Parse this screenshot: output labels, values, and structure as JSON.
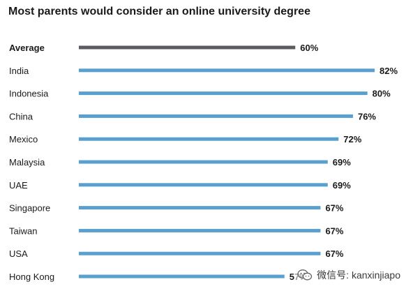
{
  "chart_data": {
    "type": "bar",
    "orientation": "horizontal",
    "title": "Most parents would consider an online university degree",
    "categories": [
      "Average",
      "India",
      "Indonesia",
      "China",
      "Mexico",
      "Malaysia",
      "UAE",
      "Singapore",
      "Taiwan",
      "USA",
      "Hong Kong"
    ],
    "values": [
      60,
      82,
      80,
      76,
      72,
      69,
      69,
      67,
      67,
      67,
      57
    ],
    "value_labels": [
      "60%",
      "82%",
      "80%",
      "76%",
      "72%",
      "69%",
      "69%",
      "67%",
      "67%",
      "67%",
      "57%"
    ],
    "highlight_category": "Average",
    "xlim": [
      0,
      82
    ],
    "grid": false,
    "legend": "none",
    "colors": {
      "bar": "#5aa0cf",
      "highlight_bar": "#5a5c60",
      "text": "#1a1a1a"
    }
  },
  "watermark": {
    "icon": "wechat-icon",
    "text": "微信号: kanxinjiapo"
  }
}
